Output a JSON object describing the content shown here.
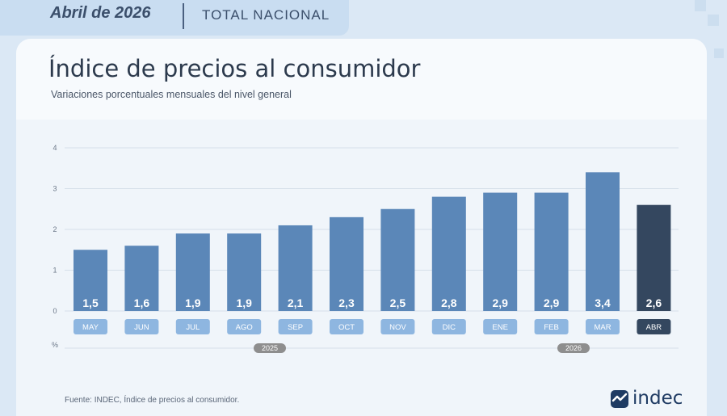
{
  "header": {
    "date": "Abril de 2026",
    "scope": "TOTAL NACIONAL"
  },
  "title": "Índice de precios al consumidor",
  "subtitle": "Variaciones porcentuales mensuales del nivel general",
  "source": "Fuente: INDEC, Índice de precios al consumidor.",
  "logo": {
    "text": "indec",
    "icon": "indec-logo-icon"
  },
  "colors": {
    "bar": "#5b87b8",
    "bar_highlight": "#34475f",
    "label_bg": "#8eb6e0",
    "label_bg_highlight": "#34475f",
    "grid": "#d6e0ea",
    "year_pill": "#8e8e8e"
  },
  "chart_data": {
    "type": "bar",
    "title": "Índice de precios al consumidor",
    "subtitle": "Variaciones porcentuales mensuales del nivel general",
    "ylabel": "%",
    "ylim": [
      0,
      4
    ],
    "yticks": [
      "0",
      "1",
      "2",
      "3",
      "4"
    ],
    "grid": true,
    "categories": [
      "MAY",
      "JUN",
      "JUL",
      "AGO",
      "SEP",
      "OCT",
      "NOV",
      "DIC",
      "ENE",
      "FEB",
      "MAR",
      "ABR"
    ],
    "values": [
      1.5,
      1.6,
      1.9,
      1.9,
      2.1,
      2.3,
      2.5,
      2.8,
      2.9,
      2.9,
      3.4,
      2.6
    ],
    "value_labels": [
      "1,5",
      "1,6",
      "1,9",
      "1,9",
      "2,1",
      "2,3",
      "2,5",
      "2,8",
      "2,9",
      "2,9",
      "3,4",
      "2,6"
    ],
    "highlight": "ABR",
    "year_groups": [
      {
        "label": "2025",
        "categories": [
          "MAY",
          "JUN",
          "JUL",
          "AGO",
          "SEP",
          "OCT",
          "NOV",
          "DIC"
        ]
      },
      {
        "label": "2026",
        "categories": [
          "ENE",
          "FEB",
          "MAR",
          "ABR"
        ]
      }
    ]
  }
}
